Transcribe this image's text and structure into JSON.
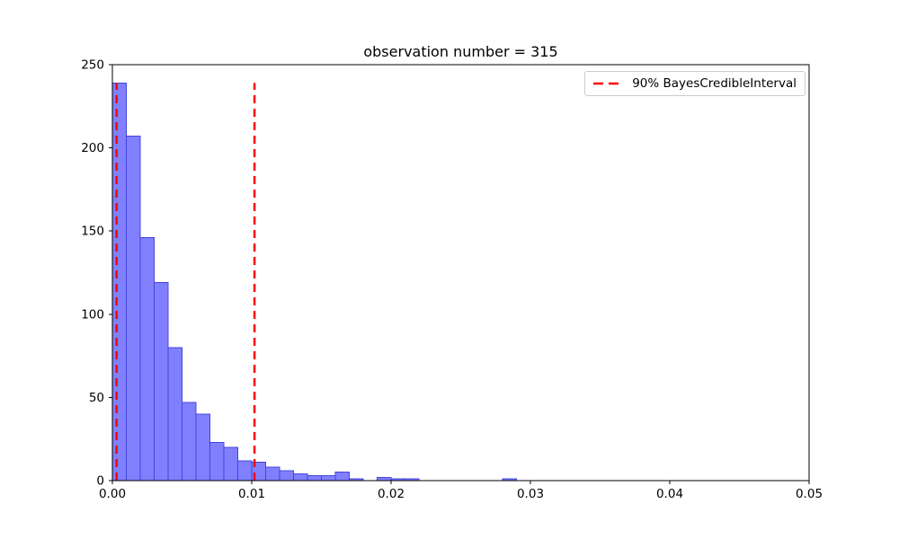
{
  "chart_data": {
    "type": "bar",
    "subtype": "histogram",
    "title": "observation number = 315",
    "xlabel": "",
    "ylabel": "",
    "xlim": [
      0.0,
      0.05
    ],
    "ylim": [
      0,
      250
    ],
    "grid": false,
    "bin_start": 0.0,
    "bin_width": 0.001,
    "counts": [
      239,
      207,
      146,
      119,
      80,
      47,
      40,
      23,
      20,
      12,
      11,
      8,
      6,
      4,
      3,
      3,
      5,
      1,
      0,
      2,
      1,
      1,
      0,
      0,
      0,
      0,
      0,
      0,
      1,
      0
    ],
    "x_ticks": {
      "values": [
        0.0,
        0.01,
        0.02,
        0.03,
        0.04,
        0.05
      ],
      "labels": [
        "0.00",
        "0.01",
        "0.02",
        "0.03",
        "0.04",
        "0.05"
      ]
    },
    "y_ticks": {
      "values": [
        0,
        50,
        100,
        150,
        200,
        250
      ],
      "labels": [
        "0",
        "50",
        "100",
        "150",
        "200",
        "250"
      ]
    },
    "vlines": {
      "x": [
        0.0003,
        0.0102
      ],
      "ymin": 0,
      "ymax": 239,
      "style": "dashed"
    },
    "legend": {
      "position": "upper right",
      "label": "90% BayesCredibleInterval"
    },
    "colors": {
      "bar_fill": "#8080ff",
      "bar_edge": "#4444dd",
      "interval_line": "#ff0000",
      "spine": "#000000",
      "tick_text": "#000000",
      "legend_border": "#cccccc"
    }
  }
}
